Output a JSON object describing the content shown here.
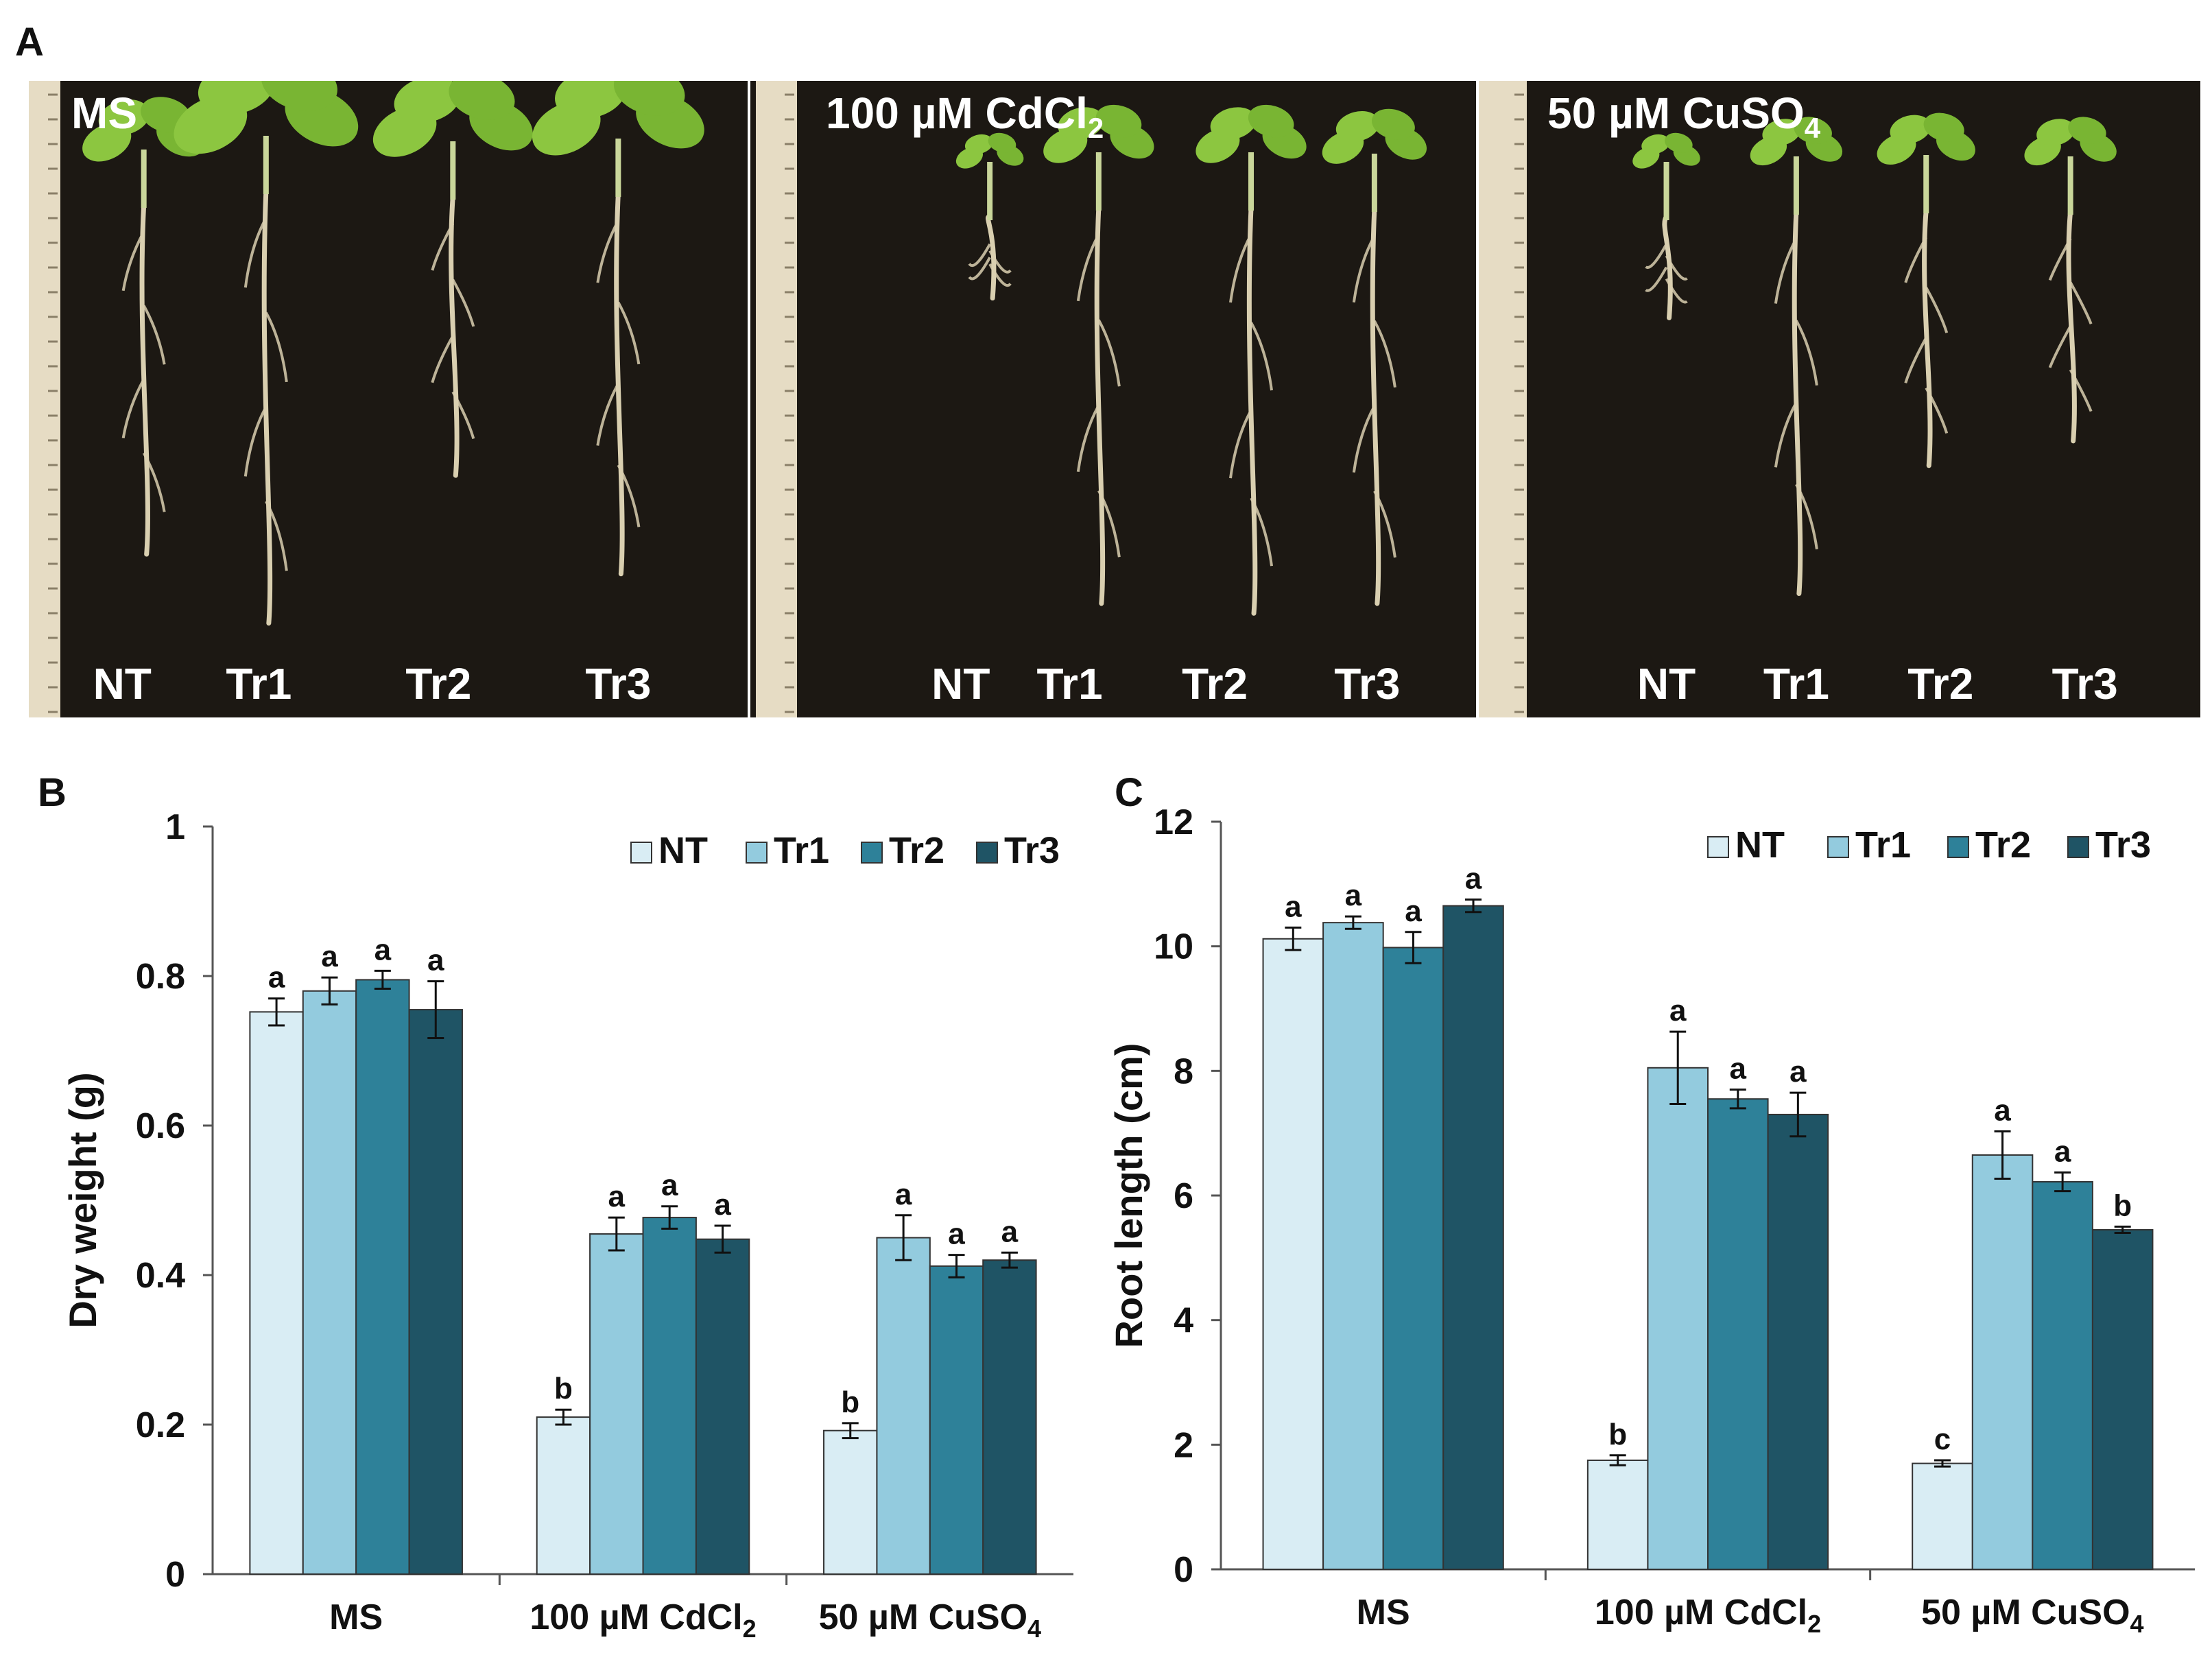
{
  "panels": {
    "a_letter": "A",
    "b_letter": "B",
    "c_letter": "C"
  },
  "photos": [
    {
      "title": "MS",
      "title_sub": "",
      "plants": [
        "NT",
        "Tr1",
        "Tr2",
        "Tr3"
      ]
    },
    {
      "title": "100 µM CdCl",
      "title_sub": "2",
      "plants": [
        "NT",
        "Tr1",
        "Tr2",
        "Tr3"
      ]
    },
    {
      "title": "50 µM CuSO",
      "title_sub": "4",
      "plants": [
        "NT",
        "Tr1",
        "Tr2",
        "Tr3"
      ]
    }
  ],
  "colors": {
    "NT": "#d9edf4",
    "Tr1": "#93cbde",
    "Tr2": "#2e8199",
    "Tr3": "#1f5465",
    "photo_bg": "#1c1813",
    "leaf": "#8cc640",
    "root": "#d9cfb0"
  },
  "chart_data": [
    {
      "type": "bar",
      "title": "",
      "xlabel": "",
      "ylabel": "Dry weight (g)",
      "ylim": [
        0,
        1
      ],
      "yticks": [
        "0",
        "0.2",
        "0.4",
        "0.6",
        "0.8",
        "1"
      ],
      "categories": [
        "MS",
        "100 µM CdCl|2",
        "50 µM CuSO|4"
      ],
      "legend_position": "top-right",
      "grid": false,
      "series": [
        {
          "name": "NT",
          "values": [
            0.752,
            0.21,
            0.192
          ],
          "errors": [
            0.018,
            0.01,
            0.01
          ],
          "letters": [
            "a",
            "b",
            "b"
          ]
        },
        {
          "name": "Tr1",
          "values": [
            0.78,
            0.455,
            0.45
          ],
          "errors": [
            0.018,
            0.022,
            0.03
          ],
          "letters": [
            "a",
            "a",
            "a"
          ]
        },
        {
          "name": "Tr2",
          "values": [
            0.795,
            0.477,
            0.412
          ],
          "errors": [
            0.012,
            0.015,
            0.015
          ],
          "letters": [
            "a",
            "a",
            "a"
          ]
        },
        {
          "name": "Tr3",
          "values": [
            0.755,
            0.448,
            0.42
          ],
          "errors": [
            0.038,
            0.018,
            0.01
          ],
          "letters": [
            "a",
            "a",
            "a"
          ]
        }
      ]
    },
    {
      "type": "bar",
      "title": "",
      "xlabel": "",
      "ylabel": "Root length (cm)",
      "ylim": [
        0,
        12
      ],
      "yticks": [
        "0",
        "2",
        "4",
        "6",
        "8",
        "10",
        "12"
      ],
      "categories": [
        "MS",
        "100 µM CdCl|2",
        "50 µM CuSO|4"
      ],
      "legend_position": "top-right",
      "grid": false,
      "series": [
        {
          "name": "NT",
          "values": [
            10.12,
            1.75,
            1.7
          ],
          "errors": [
            0.18,
            0.08,
            0.05
          ],
          "letters": [
            "a",
            "b",
            "c"
          ]
        },
        {
          "name": "Tr1",
          "values": [
            10.38,
            8.05,
            6.65
          ],
          "errors": [
            0.1,
            0.58,
            0.38
          ],
          "letters": [
            "a",
            "a",
            "a"
          ]
        },
        {
          "name": "Tr2",
          "values": [
            9.98,
            7.55,
            6.22
          ],
          "errors": [
            0.25,
            0.15,
            0.15
          ],
          "letters": [
            "a",
            "a",
            "a"
          ]
        },
        {
          "name": "Tr3",
          "values": [
            10.65,
            7.3,
            5.45
          ],
          "errors": [
            0.1,
            0.35,
            0.05
          ],
          "letters": [
            "a",
            "a",
            "b"
          ]
        }
      ]
    }
  ]
}
